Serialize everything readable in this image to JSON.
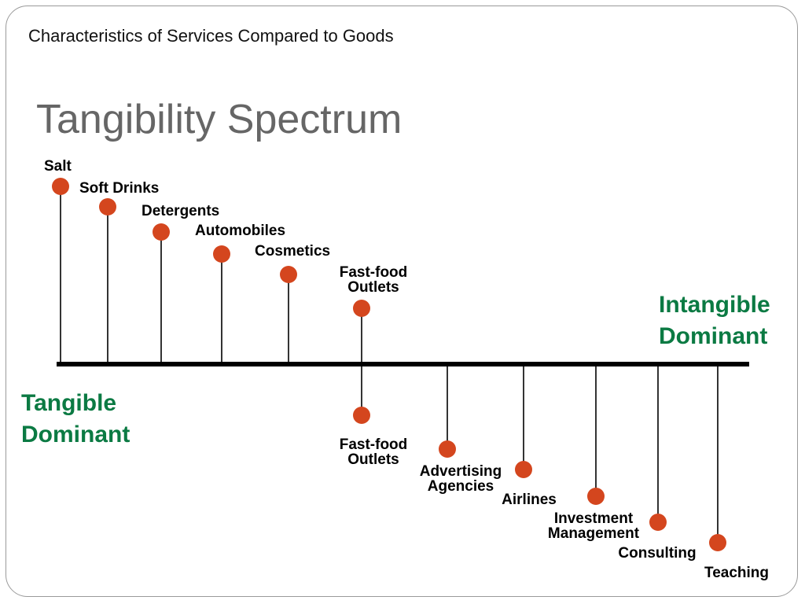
{
  "subtitle": "Characteristics of Services Compared to Goods",
  "title": "Tangibility Spectrum",
  "colors": {
    "dot": "#d4461e",
    "accent_green": "#0b7a43",
    "title_gray": "#666666",
    "line": "#000000"
  },
  "left_end": {
    "line1": "Tangible",
    "line2": "Dominant"
  },
  "right_end": {
    "line1": "Intangible",
    "line2": "Dominant"
  },
  "goods_items": [
    {
      "label": [
        "Salt"
      ]
    },
    {
      "label": [
        "Soft Drinks"
      ]
    },
    {
      "label": [
        "Detergents"
      ]
    },
    {
      "label": [
        "Automobiles"
      ]
    },
    {
      "label": [
        "Cosmetics"
      ]
    },
    {
      "label": [
        "Fast-food",
        "Outlets"
      ]
    }
  ],
  "service_items": [
    {
      "label": [
        "Fast-food",
        "Outlets"
      ]
    },
    {
      "label": [
        "Advertising",
        "Agencies"
      ]
    },
    {
      "label": [
        "Airlines"
      ]
    },
    {
      "label": [
        "Investment",
        "Management"
      ]
    },
    {
      "label": [
        "Consulting"
      ]
    },
    {
      "label": [
        "Teaching"
      ]
    }
  ]
}
